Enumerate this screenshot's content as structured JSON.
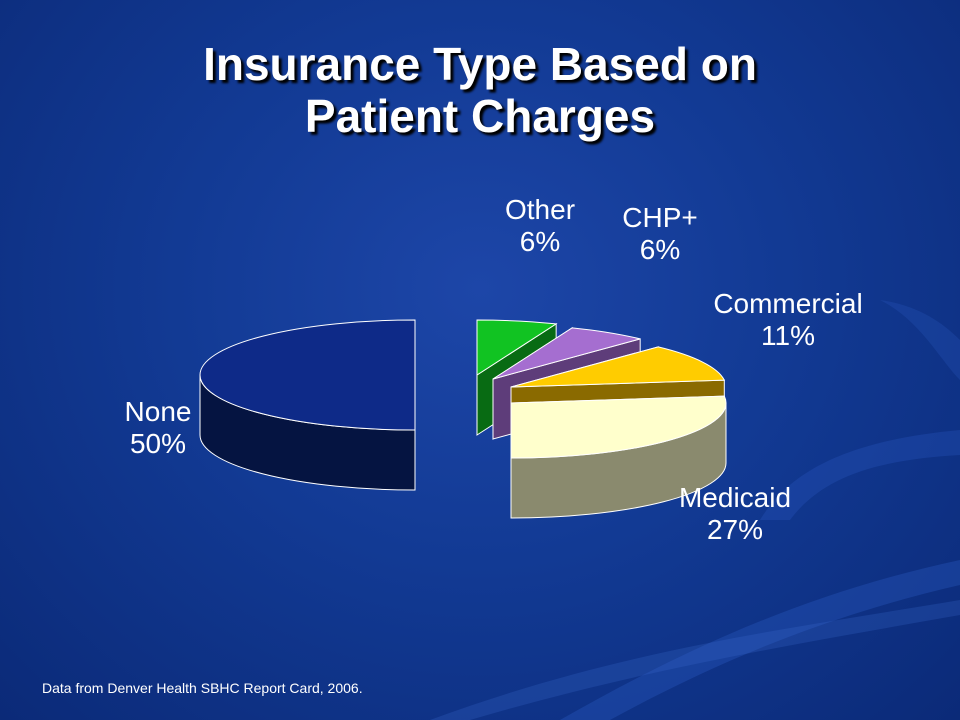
{
  "slide": {
    "title_lines": [
      "Insurance Type Based on",
      "Patient Charges"
    ],
    "source_note": "Data from Denver Health SBHC Report Card, 2006."
  },
  "chart_data": {
    "type": "pie",
    "three_d": true,
    "exploded": true,
    "slices": [
      {
        "label": "None",
        "percent_label": "50%",
        "value": 50,
        "top_color": "#0e2a88",
        "side_color": "#051441"
      },
      {
        "label": "Other",
        "percent_label": "6%",
        "value": 6,
        "top_color": "#11c322",
        "side_color": "#086b13"
      },
      {
        "label": "CHP+",
        "percent_label": "6%",
        "value": 6,
        "top_color": "#a56ed0",
        "side_color": "#5e3d7a"
      },
      {
        "label": "Commercial",
        "percent_label": "11%",
        "value": 11,
        "top_color": "#ffcc00",
        "side_color": "#8a6a00"
      },
      {
        "label": "Medicaid",
        "percent_label": "27%",
        "value": 27,
        "top_color": "#ffffcc",
        "side_color": "#8a8a6e"
      }
    ]
  }
}
